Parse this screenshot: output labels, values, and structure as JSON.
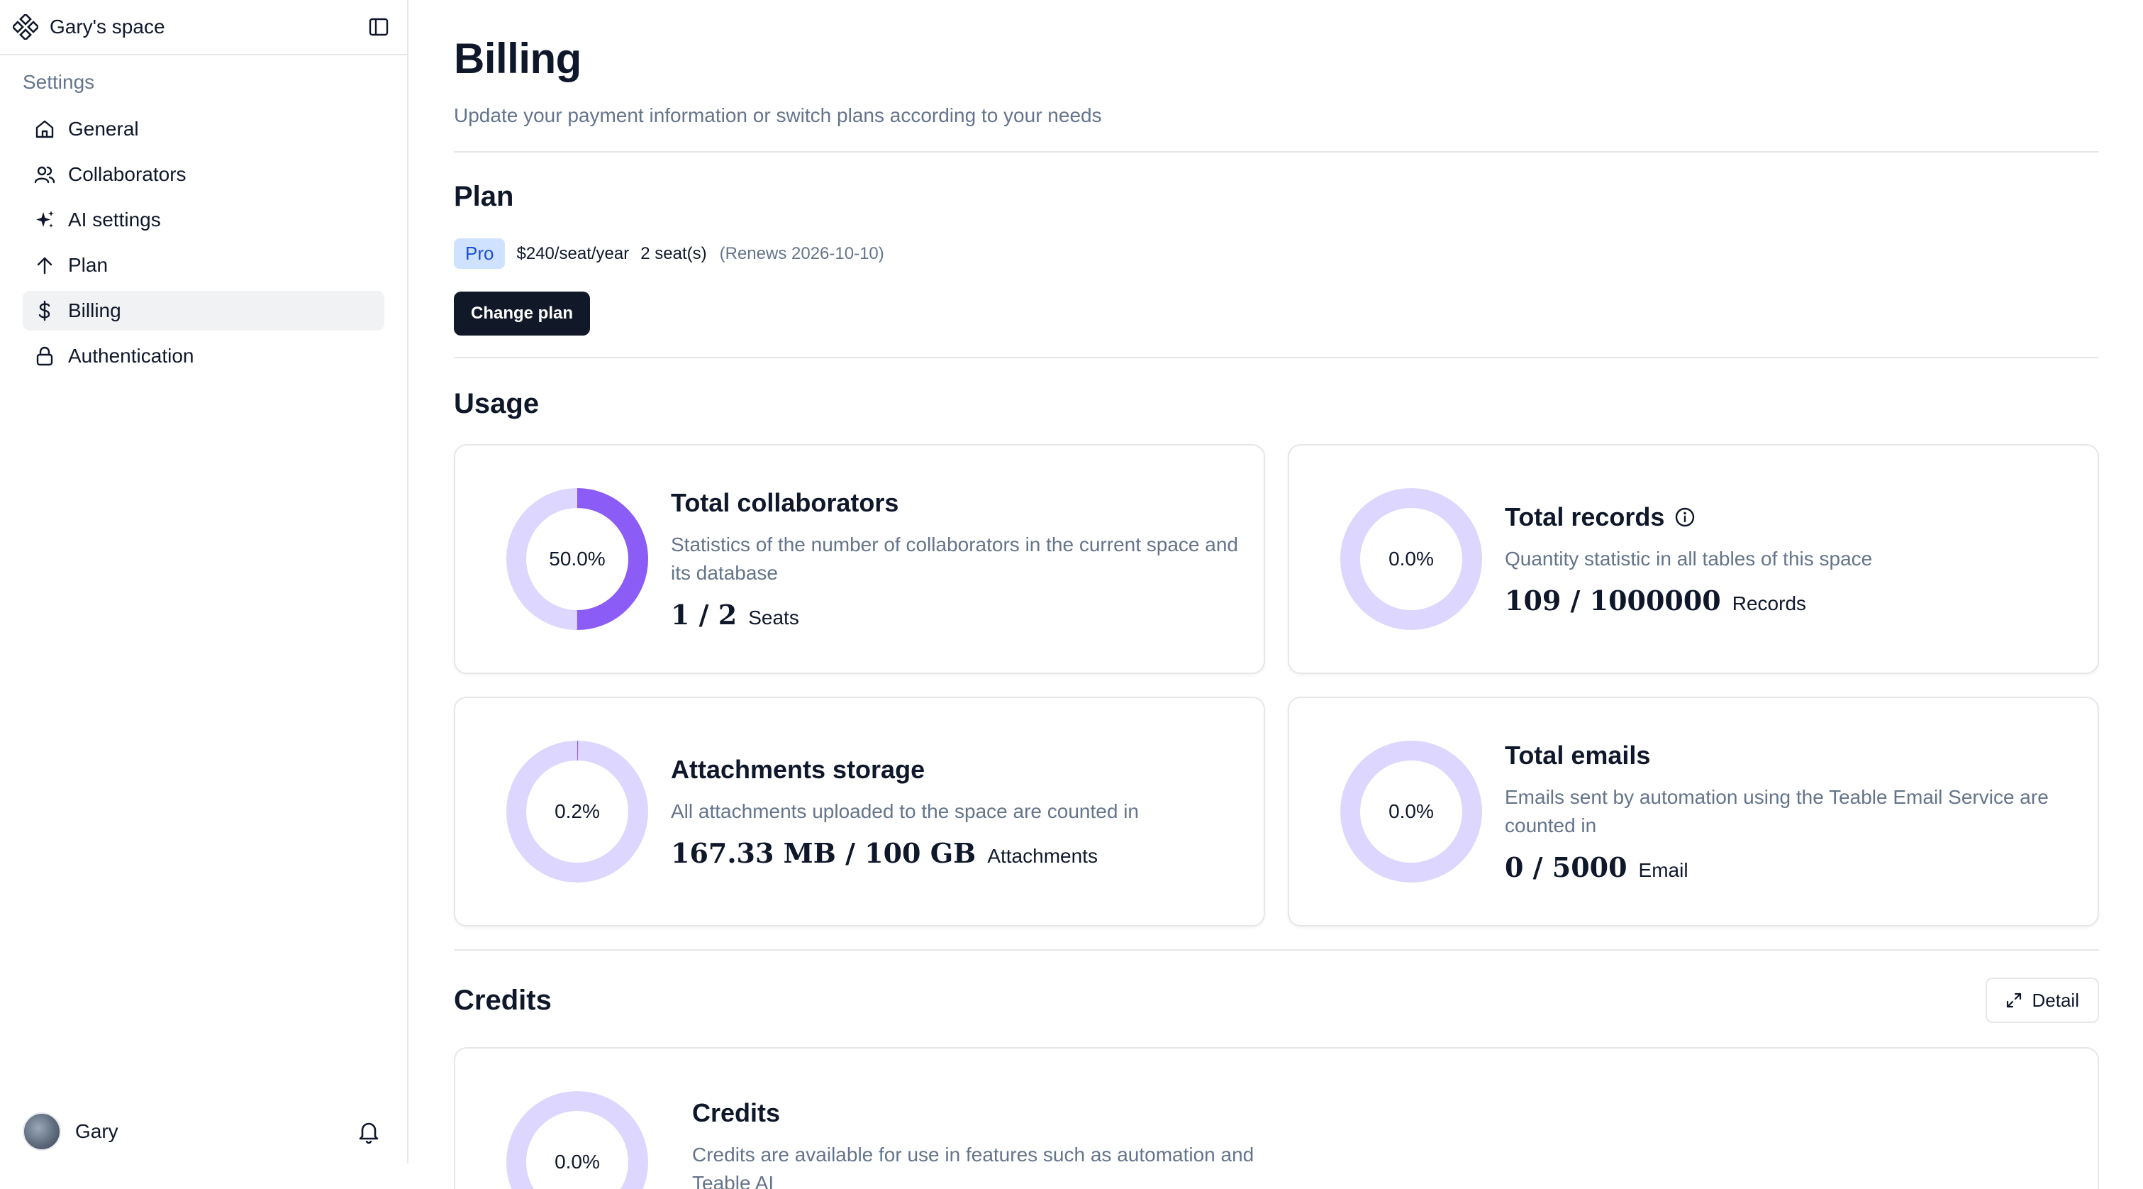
{
  "sidebar": {
    "space_name": "Gary's space",
    "settings_label": "Settings",
    "items": [
      {
        "label": "General",
        "icon": "home-icon"
      },
      {
        "label": "Collaborators",
        "icon": "users-icon"
      },
      {
        "label": "AI settings",
        "icon": "sparkles-icon"
      },
      {
        "label": "Plan",
        "icon": "arrow-up-icon"
      },
      {
        "label": "Billing",
        "icon": "dollar-icon",
        "active": true
      },
      {
        "label": "Authentication",
        "icon": "lock-icon"
      }
    ],
    "user_name": "Gary"
  },
  "page": {
    "title": "Billing",
    "subtitle": "Update your payment information or switch plans according to your needs"
  },
  "plan": {
    "section_title": "Plan",
    "badge": "Pro",
    "price": "$240/seat/year",
    "seats": "2 seat(s)",
    "renews": "(Renews 2026-10-10)",
    "change_label": "Change plan"
  },
  "usage": {
    "section_title": "Usage",
    "cards": [
      {
        "title": "Total collaborators",
        "description": "Statistics of the number of collaborators in the current space and its database",
        "percent_label": "50.0%",
        "percent": 0.5,
        "stat": "1 / 2",
        "unit": "Seats"
      },
      {
        "title": "Total records",
        "description": "Quantity statistic in all tables of this space",
        "percent_label": "0.0%",
        "percent": 0.0,
        "stat": "109 / 1000000",
        "unit": "Records"
      },
      {
        "title": "Attachments storage",
        "description": "All attachments uploaded to the space are counted in",
        "percent_label": "0.2%",
        "percent": 0.002,
        "stat": "167.33 MB / 100 GB",
        "unit": "Attachments"
      },
      {
        "title": "Total emails",
        "description": "Emails sent by automation using the Teable Email Service are counted in",
        "percent_label": "0.0%",
        "percent": 0.0,
        "stat": "0 / 5000",
        "unit": "Email"
      }
    ]
  },
  "credits": {
    "section_title": "Credits",
    "detail_label": "Detail",
    "card_title": "Credits",
    "card_description": "Credits are available for use in features such as automation and Teable AI",
    "percent_label": "0.0%",
    "percent": 0.0
  },
  "colors": {
    "ring_track": "#ddd6fe",
    "ring_fill": "#8b5cf6",
    "button_dark": "#111827",
    "badge_bg": "#cfe2ff",
    "badge_text": "#1d4ed8"
  }
}
